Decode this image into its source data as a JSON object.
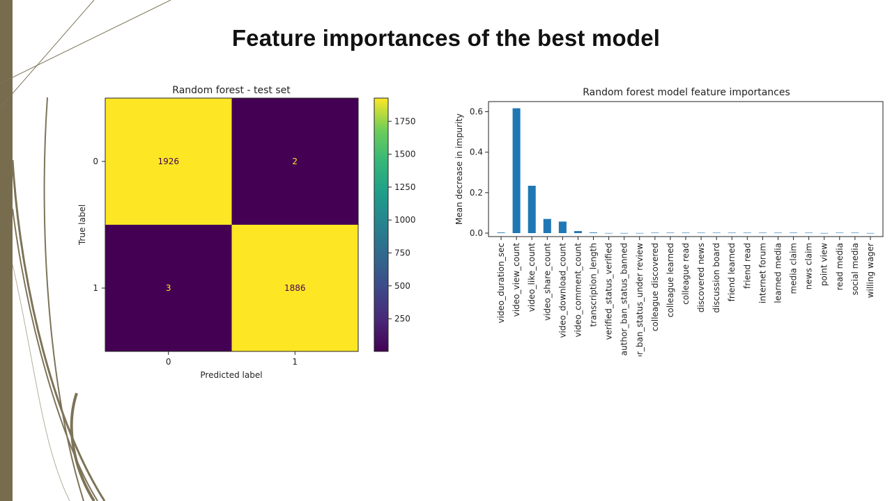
{
  "slide": {
    "title": "Feature importances of the best model"
  },
  "colors": {
    "side_bar": "#786c4e",
    "deco_lines": "#7d7358",
    "viridis_high": "#fde725",
    "viridis_low": "#440154",
    "bar": "#1f77b4"
  },
  "chart_data": [
    {
      "type": "heatmap",
      "title": "Random forest - test set",
      "xlabel": "Predicted label",
      "ylabel": "True label",
      "x_categories": [
        "0",
        "1"
      ],
      "y_categories": [
        "0",
        "1"
      ],
      "matrix": [
        [
          1926,
          2
        ],
        [
          3,
          1886
        ]
      ],
      "colorbar": {
        "ticks": [
          250,
          500,
          750,
          1000,
          1250,
          1500,
          1750
        ],
        "tick_labels": [
          "250",
          "500",
          "750",
          "1000",
          "1250",
          "1500",
          "1750"
        ],
        "range": [
          2,
          1926
        ],
        "colormap": "viridis"
      }
    },
    {
      "type": "bar",
      "title": "Random forest model feature importances",
      "xlabel": "",
      "ylabel": "Mean decrease in impurity",
      "ylim": [
        0,
        0.65
      ],
      "yticks": [
        0.0,
        0.2,
        0.4,
        0.6
      ],
      "ytick_labels": [
        "0.0",
        "0.2",
        "0.4",
        "0.6"
      ],
      "grid": false,
      "categories": [
        "video_duration_sec",
        "video_view_count",
        "video_like_count",
        "video_share_count",
        "video_download_count",
        "video_comment_count",
        "transcription_length",
        "verified_status_verified",
        "author_ban_status_banned",
        "author_ban_status_under review",
        "colleague discovered",
        "colleague learned",
        "colleague read",
        "discovered news",
        "discussion board",
        "friend learned",
        "friend read",
        "internet forum",
        "learned media",
        "media claim",
        "news claim",
        "point view",
        "read media",
        "social media",
        "willing wager"
      ],
      "values": [
        0.003,
        0.617,
        0.234,
        0.07,
        0.057,
        0.01,
        0.003,
        0.0005,
        0.0005,
        0.0005,
        0.002,
        0.002,
        0.002,
        0.002,
        0.002,
        0.002,
        0.002,
        0.002,
        0.002,
        0.002,
        0.002,
        0.0005,
        0.002,
        0.002,
        0.0005
      ]
    }
  ]
}
